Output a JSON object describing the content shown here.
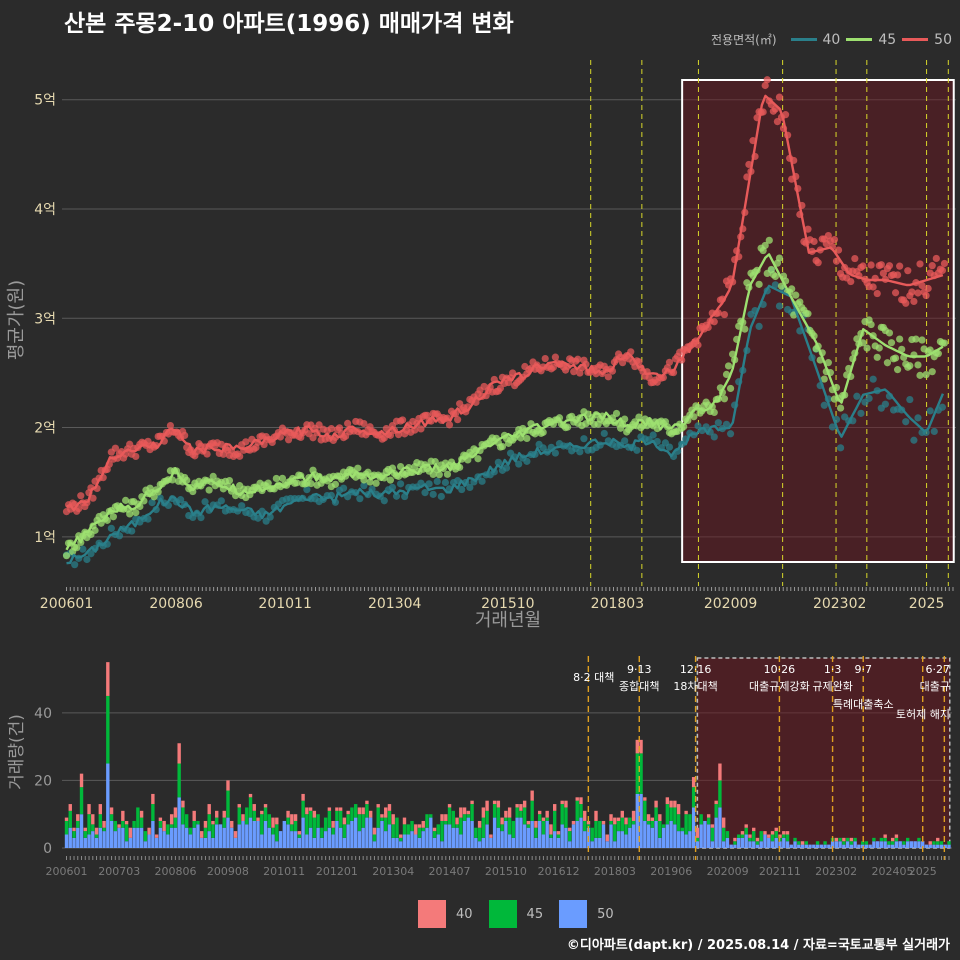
{
  "title": "산본 주몽2-10 아파트(1996) 매매가격 변화",
  "caption": "©디아파트(dapt.kr) / 2025.08.14 / 자료=국토교통부 실거래가",
  "legend_top": {
    "title": "전용면적(㎡)",
    "items": [
      {
        "label": "40",
        "color": "#2a7f8a"
      },
      {
        "label": "45",
        "color": "#9de070"
      },
      {
        "label": "50",
        "color": "#e85a5a"
      }
    ]
  },
  "legend_bottom": {
    "items": [
      {
        "label": "40",
        "color": "#f47a7a"
      },
      {
        "label": "45",
        "color": "#00b83a"
      },
      {
        "label": "50",
        "color": "#6a9cff"
      }
    ]
  },
  "chart_data": [
    {
      "type": "line",
      "xlabel": "거래년월",
      "ylabel": "평균가(원)",
      "x_tick_labels": [
        "200601",
        "200806",
        "201011",
        "201304",
        "201510",
        "201803",
        "202009",
        "202302",
        "2025"
      ],
      "y_tick_labels": [
        "1억",
        "2억",
        "3억",
        "4억",
        "5억"
      ],
      "y_ticks": [
        1,
        2,
        3,
        4,
        5
      ],
      "ylim": [
        0.55,
        5.4
      ],
      "xlim": [
        2005.9,
        2025.65
      ],
      "grid": true,
      "series": [
        {
          "name": "40",
          "x": [
            2006.0,
            2006.5,
            2007.0,
            2007.5,
            2008.0,
            2008.4,
            2008.8,
            2009.3,
            2009.8,
            2010.4,
            2010.9,
            2011.4,
            2011.9,
            2012.4,
            2012.9,
            2013.4,
            2013.9,
            2014.4,
            2014.9,
            2015.4,
            2015.9,
            2016.4,
            2016.9,
            2017.4,
            2017.9,
            2018.4,
            2018.9,
            2019.4,
            2019.9,
            2020.3,
            2020.7,
            2021.1,
            2021.5,
            2022.0,
            2022.6,
            2023.1,
            2023.6,
            2024.1,
            2024.6,
            2025.0,
            2025.4
          ],
          "values": [
            0.78,
            0.85,
            1.02,
            1.12,
            1.3,
            1.35,
            1.22,
            1.28,
            1.25,
            1.2,
            1.3,
            1.38,
            1.35,
            1.42,
            1.38,
            1.42,
            1.45,
            1.43,
            1.52,
            1.62,
            1.72,
            1.78,
            1.8,
            1.85,
            1.88,
            1.82,
            1.9,
            1.75,
            1.95,
            1.98,
            2.0,
            2.9,
            3.3,
            3.2,
            2.5,
            1.9,
            2.3,
            2.35,
            2.1,
            1.95,
            2.35
          ]
        },
        {
          "name": "45",
          "x": [
            2006.0,
            2006.5,
            2007.0,
            2007.5,
            2008.0,
            2008.4,
            2008.8,
            2009.3,
            2009.8,
            2010.4,
            2010.9,
            2011.4,
            2011.9,
            2012.4,
            2012.9,
            2013.4,
            2013.9,
            2014.4,
            2014.9,
            2015.4,
            2015.9,
            2016.4,
            2016.9,
            2017.4,
            2017.9,
            2018.4,
            2018.9,
            2019.4,
            2019.9,
            2020.3,
            2020.7,
            2021.1,
            2021.5,
            2022.0,
            2022.6,
            2023.1,
            2023.6,
            2024.1,
            2024.6,
            2025.0,
            2025.4
          ],
          "values": [
            0.88,
            1.05,
            1.25,
            1.28,
            1.45,
            1.6,
            1.45,
            1.5,
            1.42,
            1.45,
            1.5,
            1.55,
            1.52,
            1.58,
            1.55,
            1.6,
            1.62,
            1.63,
            1.72,
            1.85,
            1.92,
            2.0,
            2.05,
            2.08,
            2.1,
            2.02,
            2.05,
            1.98,
            2.15,
            2.2,
            2.5,
            3.3,
            3.6,
            3.2,
            2.75,
            2.2,
            2.9,
            2.75,
            2.65,
            2.65,
            2.75
          ]
        },
        {
          "name": "50",
          "x": [
            2006.0,
            2006.5,
            2007.0,
            2007.5,
            2008.0,
            2008.4,
            2008.8,
            2009.3,
            2009.8,
            2010.4,
            2010.9,
            2011.4,
            2011.9,
            2012.4,
            2012.9,
            2013.4,
            2013.9,
            2014.4,
            2014.9,
            2015.4,
            2015.9,
            2016.4,
            2016.9,
            2017.4,
            2017.9,
            2018.4,
            2018.9,
            2019.4,
            2019.9,
            2020.3,
            2020.7,
            2021.1,
            2021.4,
            2021.8,
            2022.4,
            2022.9,
            2023.3,
            2023.7,
            2024.1,
            2024.6,
            2025.0,
            2025.4
          ],
          "values": [
            1.25,
            1.35,
            1.75,
            1.8,
            1.85,
            2.0,
            1.78,
            1.82,
            1.8,
            1.88,
            1.95,
            1.98,
            1.92,
            2.0,
            1.95,
            2.0,
            2.05,
            2.08,
            2.2,
            2.38,
            2.45,
            2.55,
            2.6,
            2.55,
            2.5,
            2.7,
            2.45,
            2.55,
            2.8,
            3.0,
            3.3,
            4.3,
            5.05,
            4.9,
            3.6,
            3.65,
            3.4,
            3.35,
            3.35,
            3.3,
            3.35,
            3.4
          ]
        }
      ],
      "highlight_range": [
        2019.6,
        2025.6
      ],
      "policy_lines": [
        2017.58,
        2018.71,
        2019.96,
        2021.82,
        2023.0,
        2023.68,
        2025.0,
        2025.48
      ]
    },
    {
      "type": "bar",
      "ylabel": "거래량(건)",
      "y_tick_labels": [
        "0",
        "20",
        "40"
      ],
      "y_ticks": [
        0,
        20,
        40
      ],
      "ylim": [
        0,
        58
      ],
      "xlim": [
        2005.9,
        2025.65
      ],
      "x_tick_labels": [
        "200601",
        "200703",
        "200806",
        "200908",
        "201011",
        "201201",
        "201304",
        "201407",
        "201510",
        "201612",
        "201803",
        "201906",
        "202009",
        "202111",
        "202302",
        "202405",
        "2025"
      ],
      "stacked": true,
      "peaks": [
        {
          "x": 2006.9,
          "s40": 10,
          "s45": 20,
          "s50": 25
        },
        {
          "x": 2006.3,
          "s40": 4,
          "s45": 8,
          "s50": 10
        },
        {
          "x": 2008.5,
          "s40": 6,
          "s45": 10,
          "s50": 15
        },
        {
          "x": 2009.6,
          "s40": 3,
          "s45": 8,
          "s50": 9
        },
        {
          "x": 2018.7,
          "s40": 4,
          "s45": 12,
          "s50": 16
        },
        {
          "x": 2019.9,
          "s40": 3,
          "s45": 6,
          "s50": 12
        },
        {
          "x": 2020.5,
          "s40": 5,
          "s45": 8,
          "s50": 12
        }
      ],
      "annotations": [
        {
          "x": 2017.58,
          "date": "",
          "text": "8·2 대책"
        },
        {
          "x": 2018.71,
          "date": "9·13",
          "text": "종합대책"
        },
        {
          "x": 2019.96,
          "date": "12·16",
          "text": "18차대책"
        },
        {
          "x": 2021.82,
          "date": "10·26",
          "text": "대출규제강화"
        },
        {
          "x": 2023.0,
          "date": "1·3",
          "text": "규제완화"
        },
        {
          "x": 2023.68,
          "date": "9·7",
          "text": "특례대출축소"
        },
        {
          "x": 2025.48,
          "date": "6·27",
          "text": "대출규"
        },
        {
          "x": 2025.3,
          "date": "",
          "text": "토허제 해지"
        }
      ]
    }
  ]
}
